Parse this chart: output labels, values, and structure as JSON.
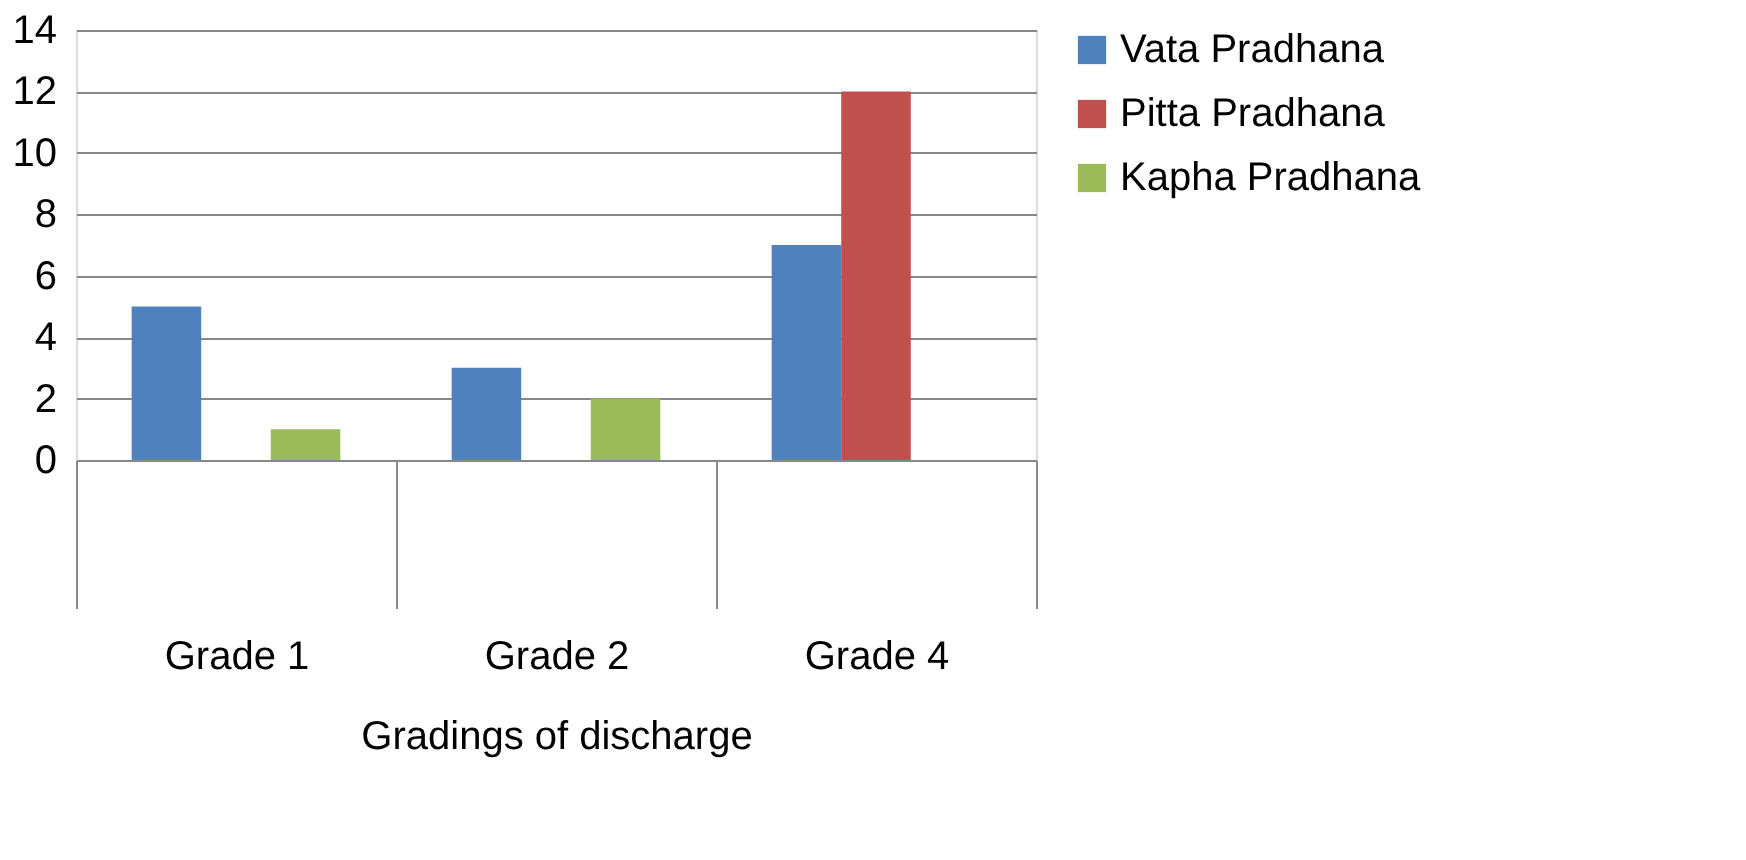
{
  "chart_data": {
    "type": "bar",
    "xlabel": "Gradings of discharge",
    "categories": [
      "Grade 1",
      "Grade 2",
      "Grade 4"
    ],
    "series": [
      {
        "name": "Vata Pradhana",
        "color": "#4f81bd",
        "values": [
          5,
          3,
          7
        ]
      },
      {
        "name": "Pitta Pradhana",
        "color": "#c0504d",
        "values": [
          null,
          null,
          12
        ]
      },
      {
        "name": "Kapha Pradhana",
        "color": "#9bbb59",
        "values": [
          1,
          2,
          null
        ]
      }
    ],
    "ylim": [
      0,
      14
    ],
    "yticks": [
      0,
      2,
      4,
      6,
      8,
      10,
      12,
      14
    ],
    "grid": "y",
    "legend": "right"
  }
}
